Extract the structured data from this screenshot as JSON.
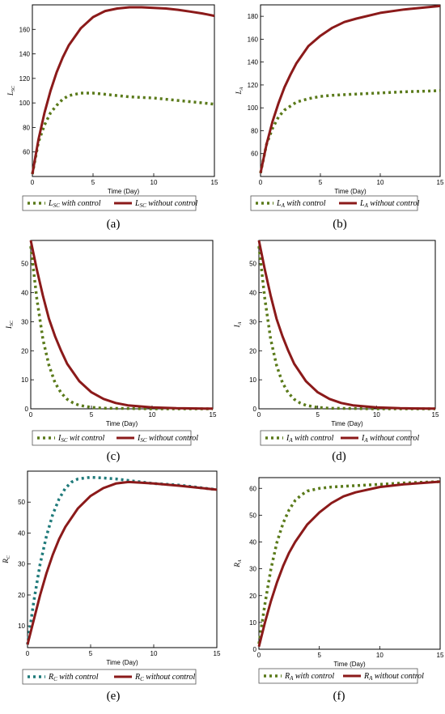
{
  "chart_data": [
    {
      "type": "line",
      "panel_label": "(a)",
      "xlabel": "Time (Day)",
      "ylabel": {
        "main": "L",
        "sub": "SC"
      },
      "xlim": [
        0,
        15
      ],
      "ylim": [
        40,
        180
      ],
      "xticks": [
        0,
        5,
        10,
        15
      ],
      "yticks": [
        60,
        80,
        100,
        120,
        140,
        160
      ],
      "series": [
        {
          "legend_main": "L",
          "legend_sub": "SC",
          "legend_suffix": " with control",
          "color": "#5a7a1a",
          "dash": "dot",
          "x": [
            0,
            0.5,
            1,
            1.5,
            2,
            2.5,
            3,
            4,
            5,
            6,
            7,
            8,
            10,
            12,
            14,
            15
          ],
          "y": [
            42,
            68,
            82,
            92,
            98,
            103,
            106,
            108,
            108,
            107,
            106,
            105,
            104,
            102,
            100,
            99
          ]
        },
        {
          "legend_main": "L",
          "legend_sub": "SC",
          "legend_suffix": " without control",
          "color": "#8b1a1a",
          "dash": "solid",
          "x": [
            0,
            0.5,
            1,
            1.5,
            2,
            2.5,
            3,
            4,
            5,
            6,
            7,
            8,
            9,
            10,
            11,
            12,
            13,
            14,
            15
          ],
          "y": [
            42,
            70,
            92,
            110,
            125,
            137,
            147,
            161,
            170,
            175,
            177,
            178,
            178,
            177.5,
            177,
            176,
            174.5,
            173,
            171
          ]
        }
      ]
    },
    {
      "type": "line",
      "panel_label": "(b)",
      "xlabel": "Time (Day)",
      "ylabel": {
        "main": "L",
        "sub": "A"
      },
      "xlim": [
        0,
        15
      ],
      "ylim": [
        40,
        190
      ],
      "xticks": [
        0,
        5,
        10,
        15
      ],
      "yticks": [
        60,
        80,
        100,
        120,
        140,
        160,
        180
      ],
      "series": [
        {
          "legend_main": "L",
          "legend_sub": "A",
          "legend_suffix": " with control",
          "color": "#5a7a1a",
          "dash": "dot",
          "x": [
            0,
            0.5,
            1,
            1.5,
            2,
            3,
            4,
            5,
            6,
            8,
            10,
            12,
            15
          ],
          "y": [
            43,
            68,
            82,
            92,
            98,
            105,
            108,
            110,
            111,
            112,
            113,
            114,
            115
          ]
        },
        {
          "legend_main": "L",
          "legend_sub": "A",
          "legend_suffix": " without control",
          "color": "#8b1a1a",
          "dash": "solid",
          "x": [
            0,
            0.5,
            1,
            1.5,
            2,
            2.5,
            3,
            4,
            5,
            6,
            7,
            8,
            10,
            12,
            15
          ],
          "y": [
            43,
            68,
            88,
            104,
            118,
            129,
            139,
            154,
            163,
            170,
            175,
            178,
            183,
            186,
            189
          ]
        }
      ]
    },
    {
      "type": "line",
      "panel_label": "(c)",
      "xlabel": "Time (Day)",
      "ylabel": {
        "main": "I",
        "sub": "SC"
      },
      "xlim": [
        0,
        15
      ],
      "ylim": [
        0,
        58
      ],
      "xticks": [
        0,
        5,
        10,
        15
      ],
      "yticks": [
        0,
        10,
        20,
        30,
        40,
        50
      ],
      "series": [
        {
          "legend_main": "I",
          "legend_sub": "SC",
          "legend_suffix": " wit control",
          "color": "#5a7a1a",
          "dash": "dot",
          "x": [
            0,
            0.5,
            1,
            1.5,
            2,
            2.5,
            3,
            3.5,
            4,
            5,
            6,
            8,
            10,
            15
          ],
          "y": [
            56,
            38,
            24,
            15,
            9,
            5.5,
            3.3,
            2,
            1.2,
            0.5,
            0.2,
            0.1,
            0,
            0
          ]
        },
        {
          "legend_main": "I",
          "legend_sub": "SC",
          "legend_suffix": " without control",
          "color": "#8b1a1a",
          "dash": "solid",
          "x": [
            0,
            0.5,
            1,
            1.5,
            2,
            2.5,
            3,
            4,
            5,
            6,
            7,
            8,
            10,
            12,
            15
          ],
          "y": [
            58,
            48,
            39,
            31,
            25,
            20,
            15.5,
            9.5,
            5.7,
            3.4,
            2,
            1.2,
            0.5,
            0.2,
            0.05
          ]
        }
      ]
    },
    {
      "type": "line",
      "panel_label": "(d)",
      "xlabel": "Time (Day)",
      "ylabel": {
        "main": "I",
        "sub": "A"
      },
      "xlim": [
        0,
        15
      ],
      "ylim": [
        0,
        58
      ],
      "xticks": [
        0,
        5,
        10,
        15
      ],
      "yticks": [
        0,
        10,
        20,
        30,
        40,
        50
      ],
      "series": [
        {
          "legend_main": "I",
          "legend_sub": "A",
          "legend_suffix": " with control",
          "color": "#5a7a1a",
          "dash": "dot",
          "x": [
            0,
            0.5,
            1,
            1.5,
            2,
            2.5,
            3,
            3.5,
            4,
            5,
            6,
            8,
            10,
            15
          ],
          "y": [
            56,
            38,
            24,
            15,
            9,
            5.5,
            3.3,
            2,
            1.2,
            0.5,
            0.2,
            0.1,
            0,
            0
          ]
        },
        {
          "legend_main": "I",
          "legend_sub": "A",
          "legend_suffix": " without control",
          "color": "#8b1a1a",
          "dash": "solid",
          "x": [
            0,
            0.5,
            1,
            1.5,
            2,
            2.5,
            3,
            4,
            5,
            6,
            7,
            8,
            10,
            12,
            15
          ],
          "y": [
            58,
            48,
            39,
            31,
            25,
            20,
            15.5,
            9.5,
            5.7,
            3.4,
            2,
            1.2,
            0.5,
            0.2,
            0.05
          ]
        }
      ]
    },
    {
      "type": "line",
      "panel_label": "(e)",
      "xlabel": "Time (Day)",
      "ylabel": {
        "main": "R",
        "sub": "C"
      },
      "xlim": [
        0,
        15
      ],
      "ylim": [
        3,
        60
      ],
      "xticks": [
        0,
        5,
        10,
        15
      ],
      "yticks": [
        10,
        20,
        30,
        40,
        50
      ],
      "series": [
        {
          "legend_main": "R",
          "legend_sub": "C",
          "legend_suffix": " with control",
          "color": "#1f7a7a",
          "dash": "dot",
          "x": [
            0,
            0.5,
            1,
            1.5,
            2,
            2.5,
            3,
            3.5,
            4,
            5,
            6,
            7,
            8,
            9,
            10,
            12,
            15
          ],
          "y": [
            4,
            18,
            30,
            39,
            46,
            51,
            54.5,
            56.5,
            57.5,
            58,
            57.8,
            57.5,
            57,
            56.5,
            56,
            55.5,
            54
          ]
        },
        {
          "legend_main": "R",
          "legend_sub": "C",
          "legend_suffix": " without control",
          "color": "#8b1a1a",
          "dash": "solid",
          "x": [
            0,
            0.5,
            1,
            1.5,
            2,
            2.5,
            3,
            4,
            5,
            6,
            7,
            8,
            9,
            10,
            12,
            15
          ],
          "y": [
            4,
            12,
            20,
            27,
            33,
            38,
            42,
            48,
            52,
            54.5,
            56,
            56.5,
            56.3,
            56,
            55.3,
            54
          ]
        }
      ]
    },
    {
      "type": "line",
      "panel_label": "(f)",
      "xlabel": "Time (Day)",
      "ylabel": {
        "main": "R",
        "sub": "A"
      },
      "xlim": [
        0,
        15
      ],
      "ylim": [
        0,
        64
      ],
      "xticks": [
        0,
        5,
        10,
        15
      ],
      "yticks": [
        0,
        10,
        20,
        30,
        40,
        50,
        60
      ],
      "series": [
        {
          "legend_main": "R",
          "legend_sub": "A",
          "legend_suffix": " with control",
          "color": "#5a7a1a",
          "dash": "dot",
          "x": [
            0,
            0.5,
            1,
            1.5,
            2,
            2.5,
            3,
            3.5,
            4,
            5,
            6,
            8,
            10,
            12,
            15
          ],
          "y": [
            2,
            17,
            30,
            40,
            47,
            52,
            55.5,
            57.5,
            59,
            60,
            60.5,
            61,
            61.5,
            62,
            62.5
          ]
        },
        {
          "legend_main": "R",
          "legend_sub": "A",
          "legend_suffix": " without control",
          "color": "#8b1a1a",
          "dash": "solid",
          "x": [
            0,
            0.5,
            1,
            1.5,
            2,
            2.5,
            3,
            4,
            5,
            6,
            7,
            8,
            10,
            12,
            15
          ],
          "y": [
            1,
            10,
            18,
            25,
            31,
            36,
            40,
            46.5,
            51,
            54.5,
            57,
            58.5,
            60.5,
            61.5,
            62.5
          ]
        }
      ]
    }
  ]
}
